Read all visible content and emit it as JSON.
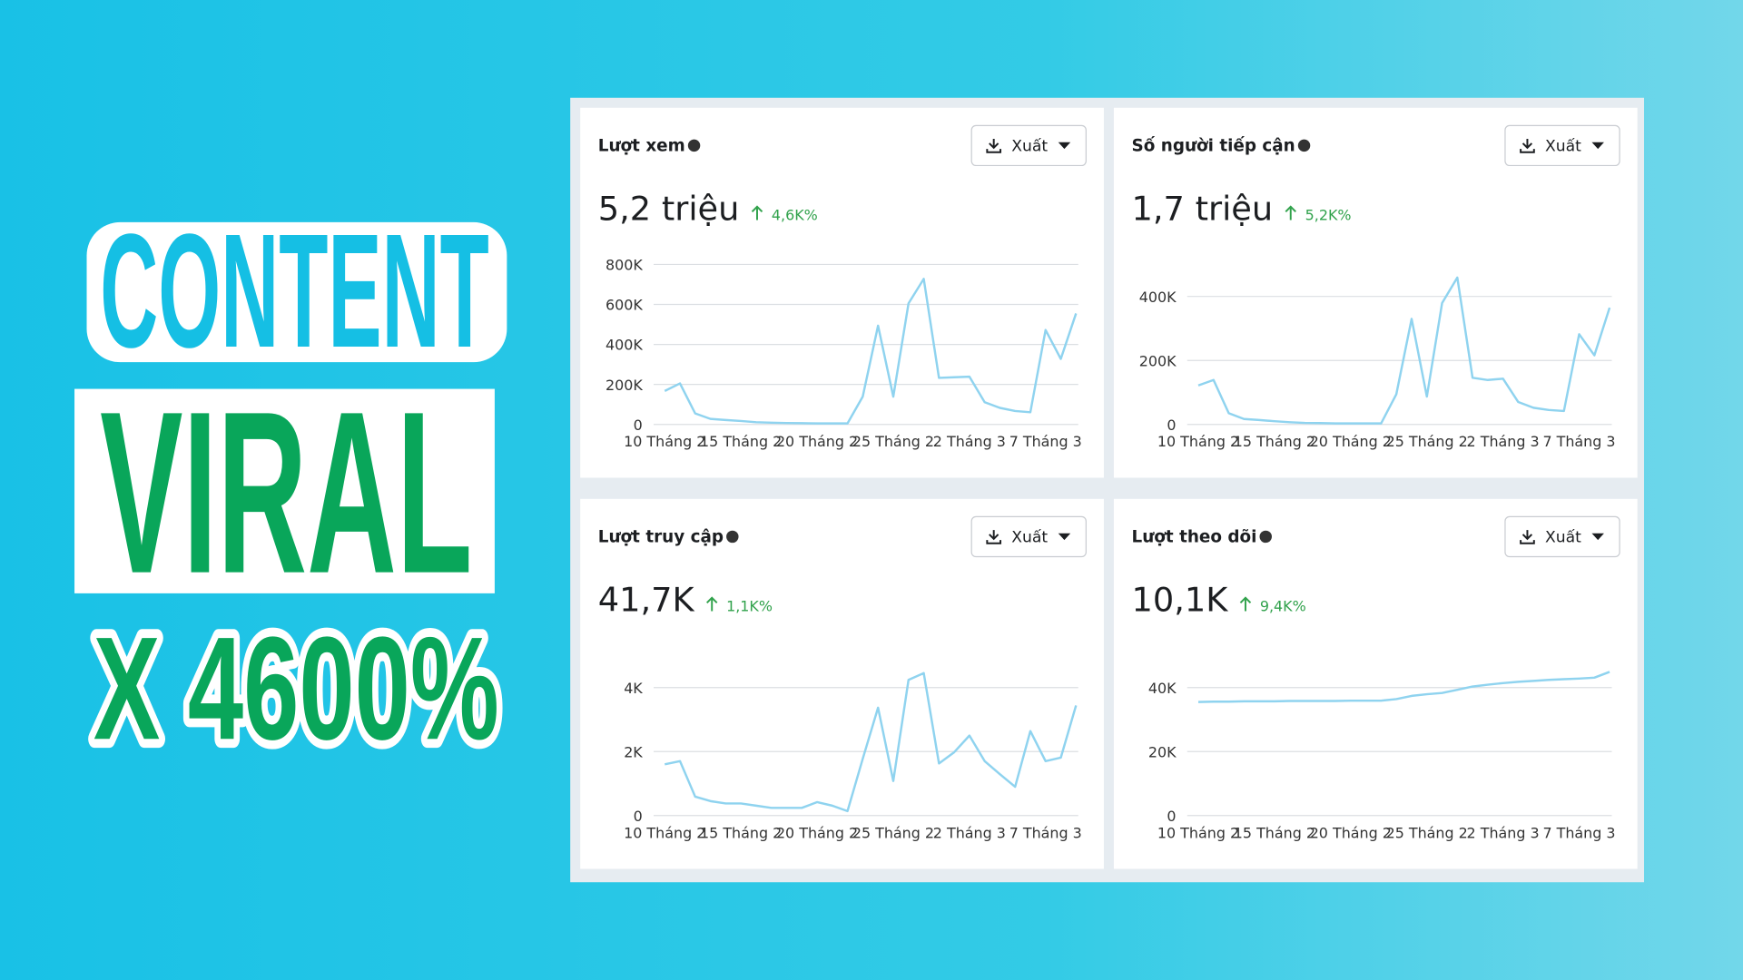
{
  "headline": {
    "line1": "CONTENT",
    "line2": "VIRAL",
    "line3": "X 4600%"
  },
  "chart_data": [
    {
      "type": "line",
      "title": "Lượt xem",
      "total": "5,2 triệu",
      "change": "4,6K%",
      "button": "Xuất",
      "color": "#8fd3ef",
      "categories": [
        "10 Tháng 2",
        null,
        null,
        null,
        null,
        "15 Tháng 2",
        null,
        null,
        null,
        null,
        "20 Tháng 2",
        null,
        null,
        null,
        null,
        "25 Tháng 2",
        null,
        null,
        null,
        null,
        "2 Tháng 3",
        null,
        null,
        null,
        null,
        "7 Tháng 3",
        null,
        null
      ],
      "values": [
        167000,
        205000,
        55000,
        28000,
        22000,
        17000,
        11000,
        9000,
        7000,
        6000,
        5000,
        5000,
        5000,
        139000,
        494000,
        139000,
        605000,
        728000,
        233000,
        236000,
        239000,
        111000,
        83000,
        67000,
        61000,
        472000,
        328000,
        555000
      ],
      "ylim": [
        0,
        800000
      ],
      "yticks": [
        0,
        {
          "value": 200000,
          "label": "200K"
        },
        {
          "value": 400000,
          "label": "400K"
        },
        {
          "value": 600000,
          "label": "600K"
        },
        {
          "value": 800000,
          "label": "800K"
        }
      ],
      "grid": true
    },
    {
      "type": "line",
      "title": "Số người tiếp cận",
      "total": "1,7 triệu",
      "change": "5,2K%",
      "button": "Xuất",
      "color": "#8fd3ef",
      "categories": [
        "10 Tháng 2",
        null,
        null,
        null,
        null,
        "15 Tháng 2",
        null,
        null,
        null,
        null,
        "20 Tháng 2",
        null,
        null,
        null,
        null,
        "25 Tháng 2",
        null,
        null,
        null,
        null,
        "2 Tháng 3",
        null,
        null,
        null,
        null,
        "7 Tháng 3",
        null,
        null
      ],
      "values": [
        122000,
        139000,
        35000,
        17000,
        14000,
        10000,
        7000,
        5000,
        4000,
        3000,
        3000,
        3000,
        3000,
        94000,
        330000,
        87000,
        379000,
        459000,
        146000,
        139000,
        143000,
        70000,
        52000,
        45000,
        42000,
        282000,
        216000,
        365000
      ],
      "ylim": [
        0,
        500000
      ],
      "yticks": [
        0,
        {
          "value": 200000,
          "label": "200K"
        },
        {
          "value": 400000,
          "label": "400K"
        }
      ],
      "grid": true
    },
    {
      "type": "line",
      "title": "Lượt truy cập",
      "total": "41,7K",
      "change": "1,1K%",
      "button": "Xuất",
      "color": "#8fd3ef",
      "categories": [
        "10 Tháng 2",
        null,
        null,
        null,
        null,
        "15 Tháng 2",
        null,
        null,
        null,
        null,
        "20 Tháng 2",
        null,
        null,
        null,
        null,
        "25 Tháng 2",
        null,
        null,
        null,
        null,
        "2 Tháng 3",
        null,
        null,
        null,
        null,
        "7 Tháng 3",
        null,
        null
      ],
      "values": [
        1600,
        1700,
        590,
        450,
        380,
        380,
        310,
        240,
        240,
        240,
        420,
        310,
        140,
        1770,
        3370,
        1080,
        4240,
        4450,
        1630,
        1980,
        2500,
        1700,
        1290,
        900,
        2640,
        1700,
        1810,
        3440
      ],
      "ylim": [
        0,
        5000
      ],
      "yticks": [
        0,
        {
          "value": 2000,
          "label": "2K"
        },
        {
          "value": 4000,
          "label": "4K"
        }
      ],
      "grid": true
    },
    {
      "type": "line",
      "title": "Lượt theo dõi",
      "total": "10,1K",
      "change": "9,4K%",
      "button": "Xuất",
      "color": "#8fd3ef",
      "categories": [
        "10 Tháng 2",
        null,
        null,
        null,
        null,
        "15 Tháng 2",
        null,
        null,
        null,
        null,
        "20 Tháng 2",
        null,
        null,
        null,
        null,
        "25 Tháng 2",
        null,
        null,
        null,
        null,
        "2 Tháng 3",
        null,
        null,
        null,
        null,
        "7 Tháng 3",
        null,
        null
      ],
      "values": [
        35500,
        35600,
        35600,
        35700,
        35700,
        35700,
        35800,
        35800,
        35800,
        35800,
        35900,
        35900,
        35900,
        36400,
        37400,
        37900,
        38300,
        39300,
        40300,
        40900,
        41400,
        41800,
        42100,
        42400,
        42600,
        42800,
        43100,
        44900
      ],
      "ylim": [
        0,
        50000
      ],
      "yticks": [
        0,
        {
          "value": 20000,
          "label": "20K"
        },
        {
          "value": 40000,
          "label": "40K"
        }
      ],
      "grid": true
    }
  ]
}
